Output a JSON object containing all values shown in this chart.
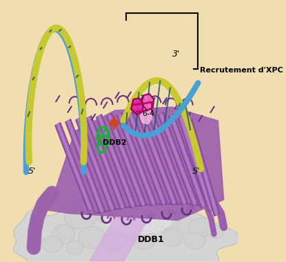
{
  "background_color": "#f0deb0",
  "labels": {
    "5prime_left": "5'",
    "5prime_right": "5'",
    "3prime": "3'",
    "label_64": "6-4",
    "label_ddb2": "DDB2",
    "label_ddb1": "DDB1",
    "label_recruitment": "Recrutement d'XPC"
  },
  "colors": {
    "dna_blue": "#4a9fd4",
    "dna_yellow": "#c8c832",
    "dna_yellow2": "#b8b820",
    "lesion_pink": "#e020a0",
    "lesion_light": "#f090d0",
    "protein_purple": "#9b5fad",
    "protein_purple2": "#8b4f9d",
    "protein_dark": "#6a3080",
    "protein_light": "#c090d8",
    "ddb1_gray": "#d8d8d8",
    "ddb1_light": "#e8e8e8",
    "ddb1_dark": "#b8b8b8",
    "green_mol": "#22aa44",
    "orange_mol": "#cc5522",
    "background": "#f0deb0",
    "black": "#000000",
    "rung_dark": "#1a5070"
  },
  "figsize": [
    4.15,
    3.8
  ],
  "dpi": 100
}
